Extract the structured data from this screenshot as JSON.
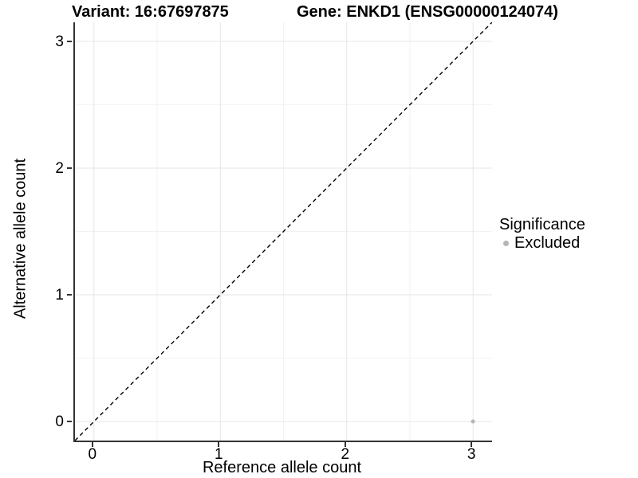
{
  "titles": {
    "variant": "Variant: 16:67697875",
    "gene": "Gene: ENKD1 (ENSG00000124074)"
  },
  "chart_data": {
    "type": "scatter",
    "title": "Variant: 16:67697875   Gene: ENKD1 (ENSG00000124074)",
    "xlabel": "Reference allele count",
    "ylabel": "Alternative allele count",
    "xlim": [
      -0.15,
      3.15
    ],
    "ylim": [
      -0.15,
      3.15
    ],
    "x_ticks": [
      0,
      1,
      2,
      3
    ],
    "y_ticks": [
      0,
      1,
      2,
      3
    ],
    "grid": "major and minor gridlines, white panel background",
    "series": [
      {
        "name": "Excluded",
        "points": [
          {
            "x": 3,
            "y": 0
          }
        ]
      }
    ],
    "reference_line": {
      "type": "identity y=x",
      "style": "dashed",
      "from": [
        -0.15,
        -0.15
      ],
      "to": [
        3.15,
        3.15
      ]
    },
    "legend": {
      "title": "Significance",
      "position": "right",
      "entries": [
        {
          "label": "Excluded",
          "color": "#b5b5b5"
        }
      ]
    }
  },
  "colors": {
    "axis": "#333333",
    "grid_major": "#e6e6e6",
    "grid_minor": "#f2f2f2",
    "point": "#b5b5b5",
    "dashed_line": "#000000",
    "text": "#000000"
  }
}
